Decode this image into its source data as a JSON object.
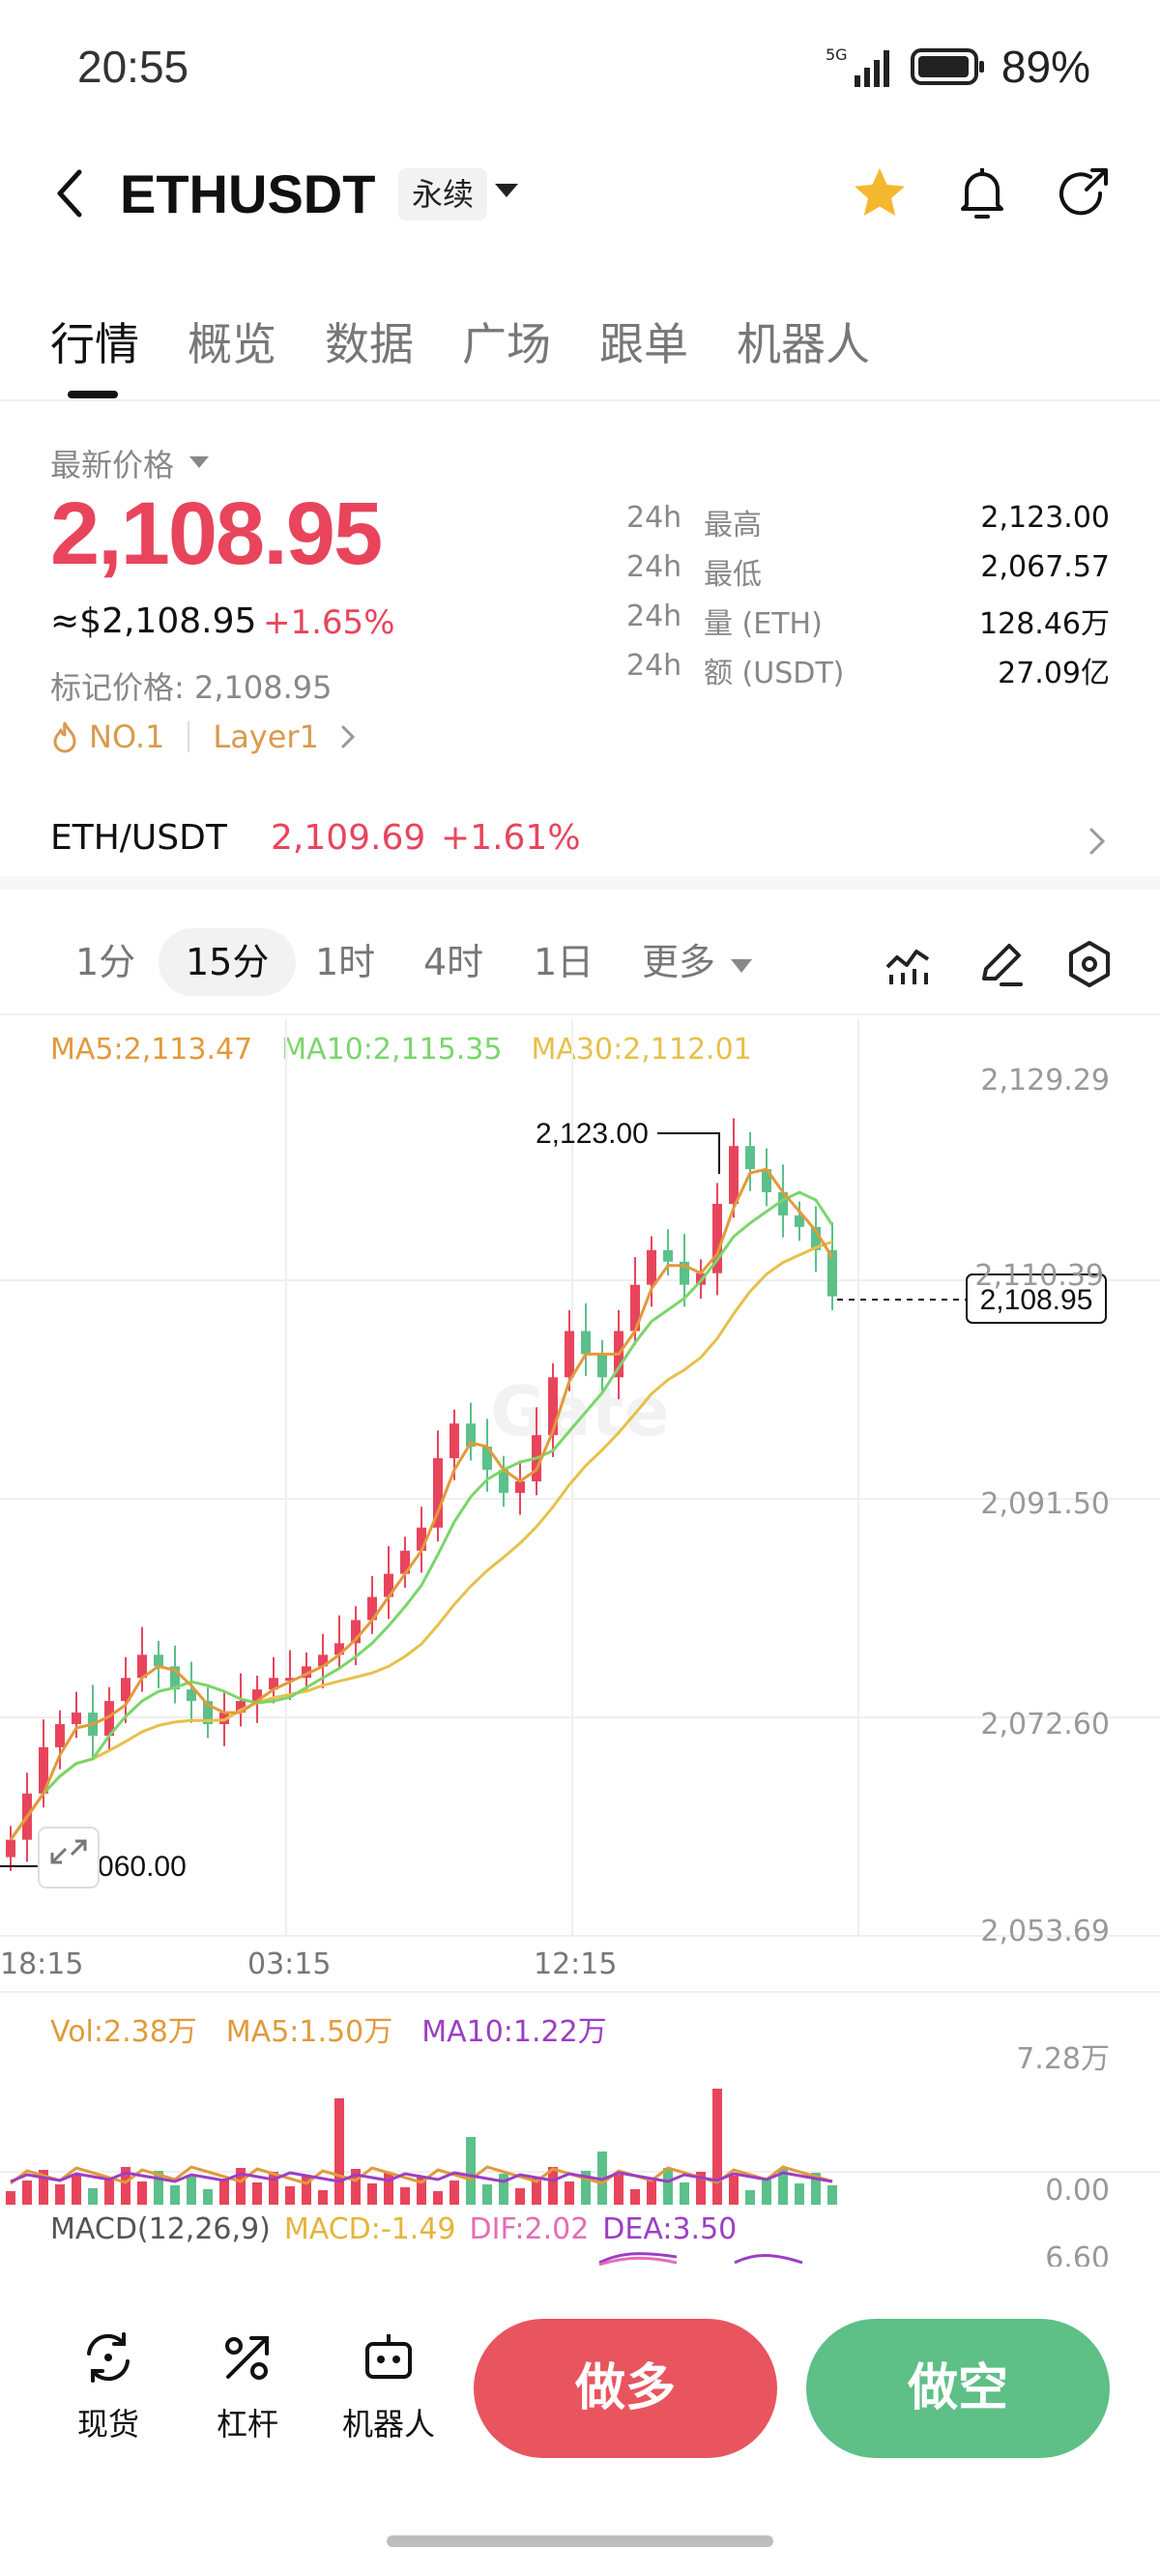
{
  "status": {
    "time": "20:55",
    "network": "5G",
    "battery": "89%"
  },
  "header": {
    "symbol": "ETHUSDT",
    "contract_type": "永续"
  },
  "tabs": [
    "行情",
    "概览",
    "数据",
    "广场",
    "跟单",
    "机器人"
  ],
  "price": {
    "label": "最新价格",
    "last": "2,108.95",
    "usd": "≈$2,108.95",
    "change": "+1.65%",
    "mark": "标记价格: 2,108.95",
    "tag_rank": "NO.1",
    "tag_sector": "Layer1"
  },
  "stats": [
    {
      "prefix": "24h",
      "name": "最高",
      "value": "2,123.00"
    },
    {
      "prefix": "24h",
      "name": "最低",
      "value": "2,067.57"
    },
    {
      "prefix": "24h",
      "name": "量 (ETH)",
      "value": "128.46万"
    },
    {
      "prefix": "24h",
      "name": "额 (USDT)",
      "value": "27.09亿"
    }
  ],
  "spot_pair": {
    "name": "ETH/USDT",
    "price": "2,109.69",
    "change": "+1.61%"
  },
  "intervals": [
    "1分",
    "15分",
    "1时",
    "4时",
    "1日",
    "更多"
  ],
  "chart": {
    "ma5": "MA5:2,113.47",
    "ma10": "MA10:2,115.35",
    "ma30": "MA30:2,112.01",
    "y_ticks": [
      "2,129.29",
      "2,110.39",
      "2,091.50",
      "2,072.60",
      "2,053.69"
    ],
    "current_price_tag": "2,108.95",
    "high_marker": "2,123.00",
    "low_marker": "2,060.00",
    "x_ticks": [
      "18:15",
      "03:15",
      "12:15"
    ],
    "vol": "Vol:2.38万",
    "vol_ma5": "MA5:1.50万",
    "vol_ma10": "MA10:1.22万",
    "vol_ticks": [
      "7.28万",
      "0.00"
    ],
    "macd_title": "MACD(12,26,9)",
    "macd": "MACD:-1.49",
    "dif": "DIF:2.02",
    "dea": "DEA:3.50",
    "macd_tick": "6.60",
    "colors": {
      "up": "#e8455c",
      "down": "#5cc08a",
      "ma5": "#e29a3b",
      "ma10": "#7ad66b",
      "ma30": "#e7c04a"
    }
  },
  "chart_data": {
    "type": "candlestick",
    "x_ticks": [
      "18:15",
      "03:15",
      "12:15"
    ],
    "ylim": [
      2053.69,
      2129.29
    ],
    "closes": [
      2062,
      2066,
      2070,
      2072,
      2073,
      2071,
      2074,
      2076,
      2078,
      2077,
      2075,
      2074,
      2072,
      2073,
      2074,
      2075,
      2076,
      2076,
      2077,
      2078,
      2079,
      2081,
      2083,
      2085,
      2087,
      2089,
      2095,
      2098,
      2096,
      2094,
      2092,
      2093,
      2097,
      2102,
      2106,
      2104,
      2102,
      2106,
      2110,
      2113,
      2112,
      2110,
      2111,
      2117,
      2122,
      2120,
      2118,
      2116,
      2115,
      2113,
      2109
    ],
    "current": 2108.95,
    "high": 2123.0,
    "low": 2060.0
  },
  "bottom": {
    "spot": "现货",
    "leverage": "杠杆",
    "bot": "机器人",
    "long": "做多",
    "short": "做空"
  }
}
